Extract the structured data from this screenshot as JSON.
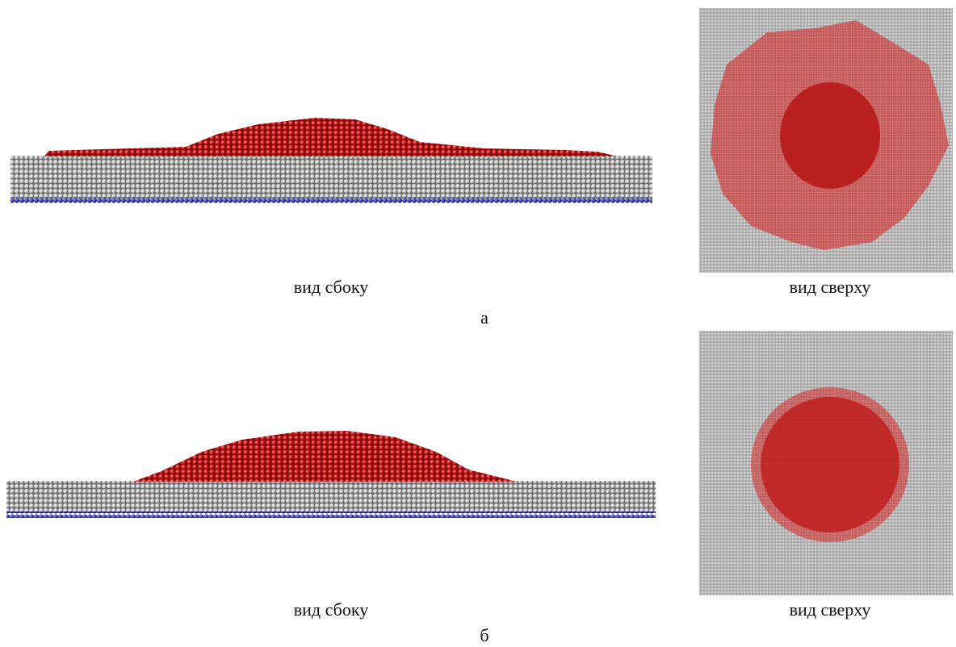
{
  "figure": {
    "panels": [
      {
        "side_caption": "вид сбоку",
        "top_caption": "вид сверху",
        "label": "а"
      },
      {
        "side_caption": "вид сбоку",
        "top_caption": "вид сверху",
        "label": "б"
      }
    ]
  }
}
